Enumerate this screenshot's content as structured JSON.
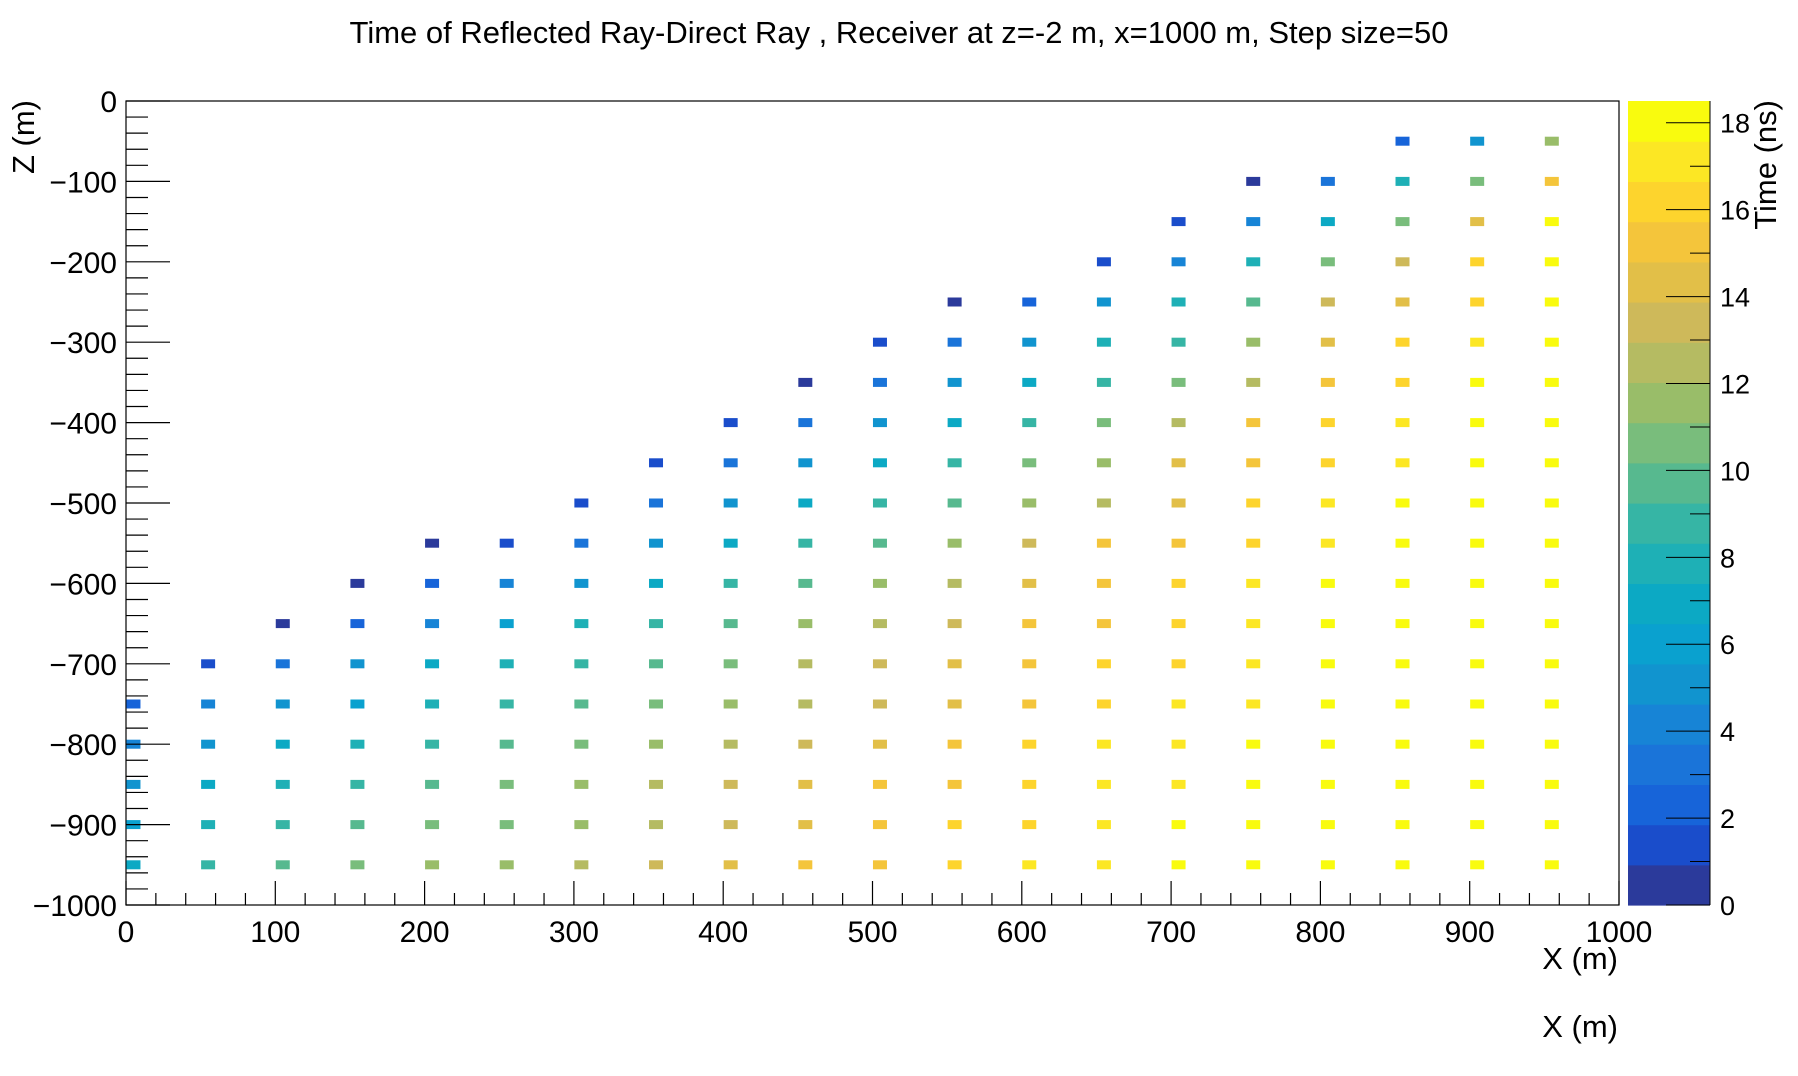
{
  "chart_data": {
    "type": "heatmap",
    "title": "Time of Reflected Ray-Direct Ray , Receiver at z=-2 m, x=1000 m, Step size=50",
    "xlabel": "X (m)",
    "xlabel_secondary": "X (m)",
    "ylabel": "Z (m)",
    "zlabel": "Time (ns)",
    "xlim": [
      0,
      1000
    ],
    "ylim": [
      -1000,
      0
    ],
    "zlim": [
      0,
      18.5
    ],
    "x_ticks": [
      0,
      100,
      200,
      300,
      400,
      500,
      600,
      700,
      800,
      900,
      1000
    ],
    "x_tick_labels": [
      "0",
      "100",
      "200",
      "300",
      "400",
      "500",
      "600",
      "700",
      "800",
      "900",
      "1000"
    ],
    "y_ticks": [
      0,
      -100,
      -200,
      -300,
      -400,
      -500,
      -600,
      -700,
      -800,
      -900,
      -1000
    ],
    "y_tick_labels": [
      "0",
      "−100",
      "−200",
      "−300",
      "−400",
      "−500",
      "−600",
      "−700",
      "−800",
      "−900",
      "−1000"
    ],
    "z_ticks": [
      0,
      2,
      4,
      6,
      8,
      10,
      12,
      14,
      16,
      18
    ],
    "z_tick_labels": [
      "0",
      "2",
      "4",
      "6",
      "8",
      "10",
      "12",
      "14",
      "16",
      "18"
    ],
    "palette": [
      "#2b3a9b",
      "#1a4dcb",
      "#1764d9",
      "#1a74d9",
      "#1784d6",
      "#1194cf",
      "#0aa1cf",
      "#0ca9c4",
      "#1eb0b6",
      "#36b5a5",
      "#57b98f",
      "#79bd7c",
      "#99bd69",
      "#b5bb62",
      "#ceb95a",
      "#e2bf48",
      "#f4c53b",
      "#fdd42d",
      "#fce724",
      "#f9fb0e"
    ],
    "x": [
      0,
      50,
      100,
      150,
      200,
      250,
      300,
      350,
      400,
      450,
      500,
      550,
      600,
      650,
      700,
      750,
      800,
      850,
      900,
      950
    ],
    "z": [
      -50,
      -100,
      -150,
      -200,
      -250,
      -300,
      -350,
      -400,
      -450,
      -500,
      -550,
      -600,
      -650,
      -700,
      -750,
      -800,
      -850,
      -900,
      -950
    ],
    "values": [
      [
        null,
        null,
        null,
        null,
        null,
        null,
        null,
        null,
        null,
        null,
        null,
        null,
        null,
        null,
        null,
        null,
        null,
        2.5,
        5.3,
        11.8
      ],
      [
        null,
        null,
        null,
        null,
        null,
        null,
        null,
        null,
        null,
        null,
        null,
        null,
        null,
        null,
        null,
        0.5,
        3.2,
        7.5,
        11.0,
        15.4
      ],
      [
        null,
        null,
        null,
        null,
        null,
        null,
        null,
        null,
        null,
        null,
        null,
        null,
        null,
        null,
        1.5,
        4.5,
        7.2,
        10.8,
        14.0,
        18.0
      ],
      [
        null,
        null,
        null,
        null,
        null,
        null,
        null,
        null,
        null,
        null,
        null,
        null,
        null,
        1.2,
        4.3,
        7.8,
        10.2,
        13.0,
        15.8,
        18.0
      ],
      [
        null,
        null,
        null,
        null,
        null,
        null,
        null,
        null,
        null,
        null,
        null,
        0.5,
        2.5,
        4.8,
        7.5,
        10.0,
        13.0,
        14.5,
        16.5,
        18.0
      ],
      [
        null,
        null,
        null,
        null,
        null,
        null,
        null,
        null,
        null,
        null,
        1.0,
        3.0,
        5.0,
        7.5,
        9.0,
        11.5,
        14.0,
        15.8,
        17.5,
        18.0
      ],
      [
        null,
        null,
        null,
        null,
        null,
        null,
        null,
        null,
        null,
        0.5,
        3.0,
        5.0,
        7.0,
        9.0,
        11.0,
        12.5,
        15.0,
        16.3,
        17.8,
        18.5
      ],
      [
        null,
        null,
        null,
        null,
        null,
        null,
        null,
        null,
        1.2,
        3.0,
        5.0,
        7.0,
        9.0,
        10.8,
        12.8,
        14.8,
        15.8,
        17.5,
        18.0,
        18.5
      ],
      [
        null,
        null,
        null,
        null,
        null,
        null,
        null,
        1.0,
        3.2,
        5.0,
        7.0,
        9.0,
        10.8,
        11.8,
        14.5,
        15.5,
        16.5,
        17.5,
        18.0,
        18.5
      ],
      [
        null,
        null,
        null,
        null,
        null,
        null,
        1.5,
        3.2,
        5.0,
        6.8,
        8.5,
        9.8,
        11.5,
        12.8,
        14.5,
        16.0,
        17.0,
        17.8,
        18.2,
        18.5
      ],
      [
        null,
        null,
        null,
        null,
        0.5,
        1.8,
        3.2,
        5.5,
        6.5,
        8.5,
        10.0,
        11.5,
        13.0,
        14.8,
        15.5,
        16.5,
        17.5,
        18.0,
        18.2,
        18.5
      ],
      [
        null,
        null,
        null,
        0.7,
        2.5,
        4.0,
        5.5,
        7.0,
        8.5,
        9.8,
        11.3,
        12.5,
        14.0,
        15.5,
        16.5,
        17.5,
        17.8,
        18.2,
        18.4,
        18.5
      ],
      [
        null,
        null,
        0.5,
        2.5,
        4.3,
        6.0,
        7.5,
        8.8,
        10.0,
        11.5,
        12.5,
        13.7,
        14.8,
        15.5,
        16.5,
        17.5,
        18.0,
        18.3,
        18.4,
        18.5
      ],
      [
        null,
        1.5,
        3.5,
        4.8,
        6.5,
        7.8,
        9.0,
        9.8,
        11.0,
        12.2,
        13.2,
        14.2,
        15.0,
        15.8,
        16.5,
        17.5,
        18.0,
        18.3,
        18.4,
        18.5
      ],
      [
        2.0,
        3.8,
        5.0,
        6.2,
        7.5,
        8.5,
        9.5,
        10.5,
        11.5,
        12.5,
        13.5,
        14.5,
        15.5,
        16.0,
        17.0,
        17.5,
        18.0,
        18.3,
        18.4,
        18.5
      ],
      [
        3.8,
        5.0,
        6.5,
        7.5,
        8.5,
        9.5,
        10.5,
        11.5,
        12.5,
        13.5,
        14.5,
        15.5,
        16.0,
        16.8,
        17.5,
        18.0,
        18.2,
        18.3,
        18.4,
        18.5
      ],
      [
        5.0,
        6.8,
        7.8,
        8.8,
        9.5,
        10.5,
        11.5,
        12.5,
        13.5,
        14.0,
        14.8,
        15.5,
        16.2,
        16.8,
        17.5,
        18.0,
        18.3,
        18.4,
        18.5,
        18.5
      ],
      [
        6.0,
        7.8,
        8.8,
        9.5,
        10.5,
        11.0,
        12.0,
        12.8,
        13.5,
        14.5,
        15.0,
        15.8,
        16.5,
        17.0,
        17.8,
        18.0,
        18.3,
        18.4,
        18.5,
        18.5
      ],
      [
        7.0,
        8.5,
        9.5,
        10.5,
        11.3,
        12.0,
        12.8,
        13.5,
        14.2,
        14.8,
        15.5,
        16.2,
        16.8,
        17.3,
        17.9,
        18.2,
        18.3,
        18.4,
        18.5,
        18.5
      ]
    ]
  }
}
